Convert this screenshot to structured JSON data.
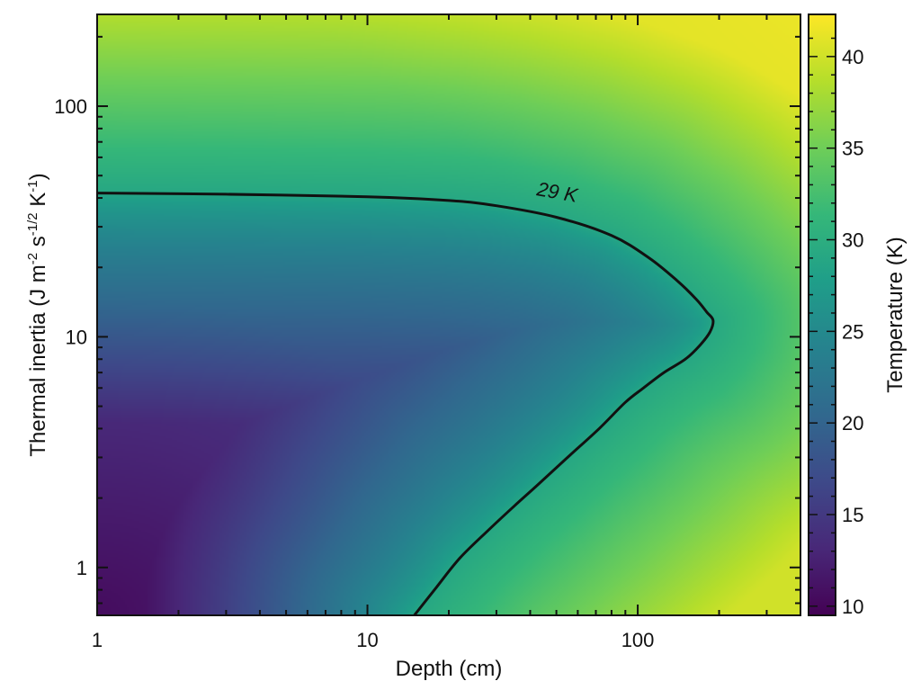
{
  "chart_data": {
    "type": "heatmap",
    "title": "",
    "xlabel": "Depth (cm)",
    "ylabel_parts": {
      "main": "Thermal inertia (J m",
      "exp1": "-2",
      "mid": " s",
      "exp2": "-1/2",
      "mid2": " K",
      "exp3": "-1",
      "end": ")"
    },
    "x_scale": "log",
    "y_scale": "log",
    "xlim": [
      1,
      400
    ],
    "ylim": [
      0.62,
      250
    ],
    "x_ticks": [
      {
        "value": 1,
        "label": "1"
      },
      {
        "value": 10,
        "label": "10"
      },
      {
        "value": 100,
        "label": "100"
      }
    ],
    "y_ticks": [
      {
        "value": 1,
        "label": "1"
      },
      {
        "value": 10,
        "label": "10"
      },
      {
        "value": 100,
        "label": "100"
      }
    ],
    "colorbar": {
      "label": "Temperature (K)",
      "range": [
        9.5,
        42.3
      ],
      "colormap": "viridis",
      "ticks": [
        {
          "value": 10,
          "label": "10"
        },
        {
          "value": 15,
          "label": "15"
        },
        {
          "value": 20,
          "label": "20"
        },
        {
          "value": 25,
          "label": "25"
        },
        {
          "value": 30,
          "label": "30"
        },
        {
          "value": 35,
          "label": "35"
        },
        {
          "value": 40,
          "label": "40"
        }
      ]
    },
    "contour": {
      "level": 29,
      "label": "29 K",
      "label_at": {
        "x": 58,
        "y": 44
      },
      "points": [
        [
          1,
          42
        ],
        [
          3,
          41.5
        ],
        [
          10,
          40.5
        ],
        [
          20,
          39
        ],
        [
          30,
          37
        ],
        [
          50,
          33
        ],
        [
          80,
          27.5
        ],
        [
          110,
          22
        ],
        [
          140,
          17.5
        ],
        [
          165,
          14.5
        ],
        [
          180,
          12.8
        ],
        [
          190,
          11.8
        ],
        [
          185,
          10.5
        ],
        [
          170,
          9.2
        ],
        [
          150,
          8.0
        ],
        [
          125,
          7.0
        ],
        [
          105,
          6.0
        ],
        [
          90,
          5.2
        ],
        [
          72,
          4.0
        ],
        [
          55,
          3.0
        ],
        [
          43,
          2.3
        ],
        [
          35,
          1.85
        ],
        [
          28,
          1.45
        ],
        [
          22,
          1.1
        ],
        [
          18,
          0.82
        ],
        [
          14.9,
          0.62
        ]
      ]
    },
    "colors": {
      "viridis_stops": [
        "#440154",
        "#482878",
        "#3e4989",
        "#31688e",
        "#26828e",
        "#1f9e89",
        "#35b779",
        "#6ece58",
        "#b5de2b",
        "#fde725"
      ],
      "contour_line": "#111111",
      "frame": "#111111"
    }
  }
}
